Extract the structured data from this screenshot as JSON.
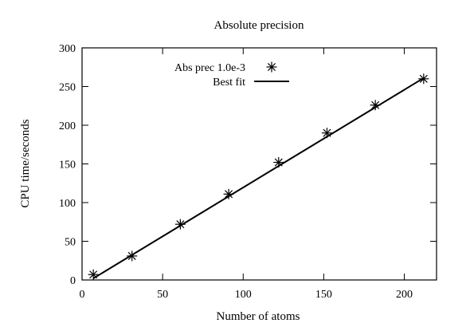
{
  "chart_data": {
    "type": "scatter",
    "title": "Absolute precision",
    "xlabel": "Number of atoms",
    "ylabel": "CPU time/seconds",
    "xlim": [
      0,
      220
    ],
    "ylim": [
      0,
      300
    ],
    "xticks": [
      0,
      50,
      100,
      150,
      200
    ],
    "yticks": [
      0,
      50,
      100,
      150,
      200,
      250,
      300
    ],
    "grid": false,
    "legend_position": "top-right",
    "series": [
      {
        "name": "Abs prec 1.0e-3",
        "kind": "points",
        "marker": "asterisk",
        "color": "#000000",
        "x": [
          7,
          31,
          61,
          91,
          122,
          152,
          182,
          212
        ],
        "y": [
          7,
          31,
          72,
          111,
          152,
          190,
          226,
          260
        ]
      },
      {
        "name": "Best fit",
        "kind": "line",
        "color": "#000000",
        "x": [
          7,
          212
        ],
        "y": [
          2,
          261
        ]
      }
    ]
  }
}
